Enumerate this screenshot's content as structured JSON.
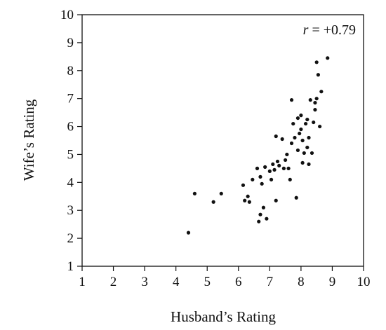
{
  "chart_data": {
    "type": "scatter",
    "title": "",
    "xlabel": "Husband’s Rating",
    "ylabel": "Wife’s Rating",
    "xlim": [
      1,
      10
    ],
    "ylim": [
      1,
      10
    ],
    "xticks": [
      "1",
      "2",
      "3",
      "4",
      "5",
      "6",
      "7",
      "8",
      "9",
      "10"
    ],
    "yticks": [
      "1",
      "2",
      "3",
      "4",
      "5",
      "6",
      "7",
      "8",
      "9",
      "10"
    ],
    "grid": false,
    "legend": "none",
    "annotation": {
      "var": "r",
      "text": " = +0.79",
      "placement": "top-right"
    },
    "colors": {
      "points": "#111111",
      "axes": "#111111"
    },
    "series": [
      {
        "points": [
          [
            4.4,
            2.2
          ],
          [
            4.6,
            3.6
          ],
          [
            5.2,
            3.3
          ],
          [
            5.45,
            3.6
          ],
          [
            6.15,
            3.9
          ],
          [
            6.2,
            3.35
          ],
          [
            6.3,
            3.5
          ],
          [
            6.35,
            3.3
          ],
          [
            6.45,
            4.1
          ],
          [
            6.6,
            4.5
          ],
          [
            6.65,
            2.6
          ],
          [
            6.7,
            2.85
          ],
          [
            6.7,
            4.2
          ],
          [
            6.75,
            3.95
          ],
          [
            6.8,
            3.1
          ],
          [
            6.85,
            4.55
          ],
          [
            6.9,
            2.7
          ],
          [
            7.0,
            4.4
          ],
          [
            7.05,
            4.1
          ],
          [
            7.1,
            4.65
          ],
          [
            7.15,
            4.45
          ],
          [
            7.2,
            3.35
          ],
          [
            7.2,
            5.65
          ],
          [
            7.25,
            4.75
          ],
          [
            7.3,
            4.6
          ],
          [
            7.4,
            5.55
          ],
          [
            7.45,
            4.5
          ],
          [
            7.5,
            4.8
          ],
          [
            7.55,
            5.0
          ],
          [
            7.6,
            4.5
          ],
          [
            7.65,
            4.1
          ],
          [
            7.7,
            5.4
          ],
          [
            7.7,
            6.95
          ],
          [
            7.75,
            6.1
          ],
          [
            7.8,
            5.6
          ],
          [
            7.85,
            3.45
          ],
          [
            7.9,
            5.15
          ],
          [
            7.9,
            6.3
          ],
          [
            7.95,
            5.75
          ],
          [
            8.0,
            5.9
          ],
          [
            8.0,
            6.4
          ],
          [
            8.05,
            4.7
          ],
          [
            8.05,
            5.5
          ],
          [
            8.1,
            5.05
          ],
          [
            8.15,
            6.1
          ],
          [
            8.2,
            5.25
          ],
          [
            8.2,
            6.25
          ],
          [
            8.25,
            4.65
          ],
          [
            8.25,
            5.6
          ],
          [
            8.3,
            6.95
          ],
          [
            8.35,
            5.05
          ],
          [
            8.4,
            6.15
          ],
          [
            8.45,
            6.6
          ],
          [
            8.45,
            6.85
          ],
          [
            8.5,
            7.0
          ],
          [
            8.5,
            8.3
          ],
          [
            8.55,
            7.85
          ],
          [
            8.6,
            6.0
          ],
          [
            8.65,
            7.25
          ],
          [
            8.85,
            8.45
          ]
        ]
      }
    ]
  }
}
